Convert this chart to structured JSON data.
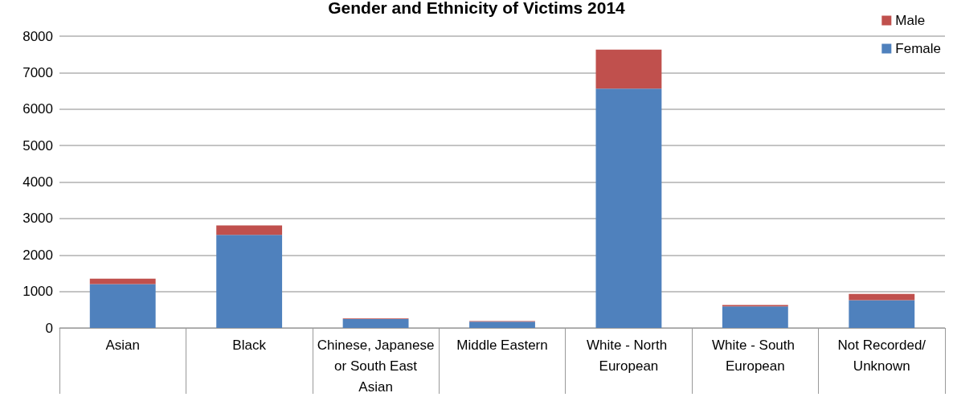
{
  "chart_data": {
    "type": "bar",
    "title": "Gender and Ethnicity of Victims 2014",
    "stacked": true,
    "categories": [
      "Asian",
      "Black",
      "Chinese, Japanese or South East Asian",
      "Middle Eastern",
      "White - North European",
      "White - South European",
      "Not Recorded/Unknown"
    ],
    "series": [
      {
        "name": "Female",
        "color": "#4f81bd",
        "values": [
          1200,
          2550,
          240,
          170,
          6560,
          590,
          760
        ]
      },
      {
        "name": "Male",
        "color": "#c0504d",
        "values": [
          150,
          260,
          20,
          20,
          1070,
          40,
          170
        ]
      }
    ],
    "ylim": [
      0,
      8000
    ],
    "yticks": [
      0,
      1000,
      2000,
      3000,
      4000,
      5000,
      6000,
      7000,
      8000
    ],
    "grid": "y",
    "legend": "top right"
  }
}
